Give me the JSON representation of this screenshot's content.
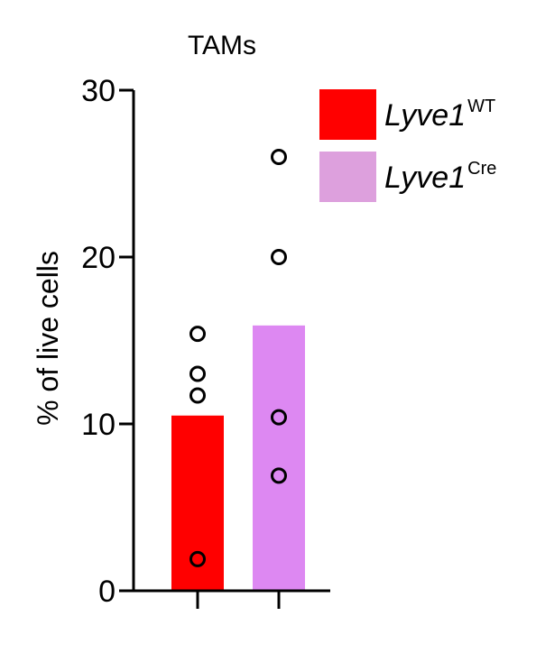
{
  "chart_data": {
    "type": "bar",
    "title": "TAMs",
    "ylabel": "% of live cells",
    "xlabel": "",
    "ylim": [
      0,
      30
    ],
    "yticks": [
      0,
      10,
      20,
      30
    ],
    "grid": false,
    "legend_position": "top-right",
    "series": [
      {
        "name_main": "Lyve1",
        "name_sup": "WT",
        "mean": 10.5,
        "points": [
          15.4,
          13.0,
          11.7,
          1.9
        ],
        "bar_color": "#ff0000",
        "legend_color": "#ff0000"
      },
      {
        "name_main": "Lyve1",
        "name_sup": "Cre",
        "mean": 15.9,
        "points": [
          26.0,
          20.0,
          10.4,
          6.9
        ],
        "bar_color": "#dd88f2",
        "legend_color": "#dda0dd"
      }
    ]
  }
}
